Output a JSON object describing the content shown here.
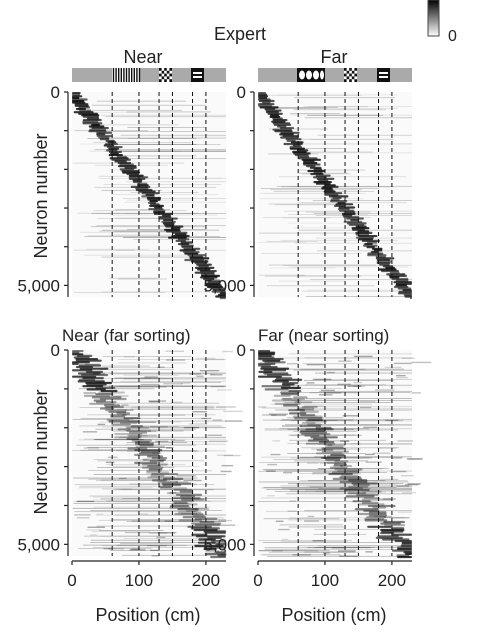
{
  "header": {
    "title": "Expert",
    "colorbar_label": "0"
  },
  "panels": {
    "near": {
      "title": "Near",
      "sorting_title": "Near (far sorting)"
    },
    "far": {
      "title": "Far",
      "sorting_title": "Far (near sorting)"
    }
  },
  "axes": {
    "ylabel": "Neuron number",
    "xlabel": "Position (cm)",
    "y_ticks": [
      "0",
      "5,000"
    ],
    "x_ticks": [
      "0",
      "100",
      "200"
    ]
  },
  "track_landmarks": {
    "near": [
      "vertical-stripes",
      "checker",
      "h-bars"
    ],
    "far": [
      "circles",
      "checker",
      "h-bars"
    ]
  },
  "chart_data": [
    {
      "type": "heatmap",
      "panel": "near-top",
      "title": "Near",
      "xlabel": "",
      "ylabel": "Neuron number",
      "xlim": [
        0,
        230
      ],
      "ylim": [
        5300,
        0
      ],
      "neurons": 5300,
      "landmark_lines_cm": [
        60,
        100,
        130,
        150,
        180,
        200
      ],
      "peak_diagonal": [
        [
          0,
          0
        ],
        [
          230,
          5300
        ]
      ],
      "diagonal_width_cm": 20
    },
    {
      "type": "heatmap",
      "panel": "far-top",
      "title": "Far",
      "xlabel": "",
      "ylabel": "",
      "xlim": [
        0,
        230
      ],
      "ylim": [
        5300,
        0
      ],
      "neurons": 5300,
      "landmark_lines_cm": [
        60,
        100,
        130,
        150,
        180,
        200
      ],
      "peak_diagonal": [
        [
          0,
          0
        ],
        [
          230,
          5300
        ]
      ],
      "diagonal_width_cm": 20
    },
    {
      "type": "heatmap",
      "panel": "near-bottom",
      "title": "Near (far sorting)",
      "xlabel": "Position (cm)",
      "ylabel": "Neuron number",
      "xlim": [
        0,
        230
      ],
      "ylim": [
        5300,
        0
      ],
      "neurons": 5300,
      "landmark_lines_cm": [
        60,
        100,
        130,
        150,
        180,
        200
      ],
      "peak_diagonal": [
        [
          0,
          0
        ],
        [
          230,
          5300
        ]
      ],
      "diagonal_width_cm": 30
    },
    {
      "type": "heatmap",
      "panel": "far-bottom",
      "title": "Far (near sorting)",
      "xlabel": "Position (cm)",
      "ylabel": "",
      "xlim": [
        0,
        230
      ],
      "ylim": [
        5300,
        0
      ],
      "neurons": 5300,
      "landmark_lines_cm": [
        60,
        100,
        130,
        150,
        180,
        200
      ],
      "peak_diagonal": [
        [
          0,
          0
        ],
        [
          230,
          5300
        ]
      ],
      "diagonal_width_cm": 30
    }
  ]
}
